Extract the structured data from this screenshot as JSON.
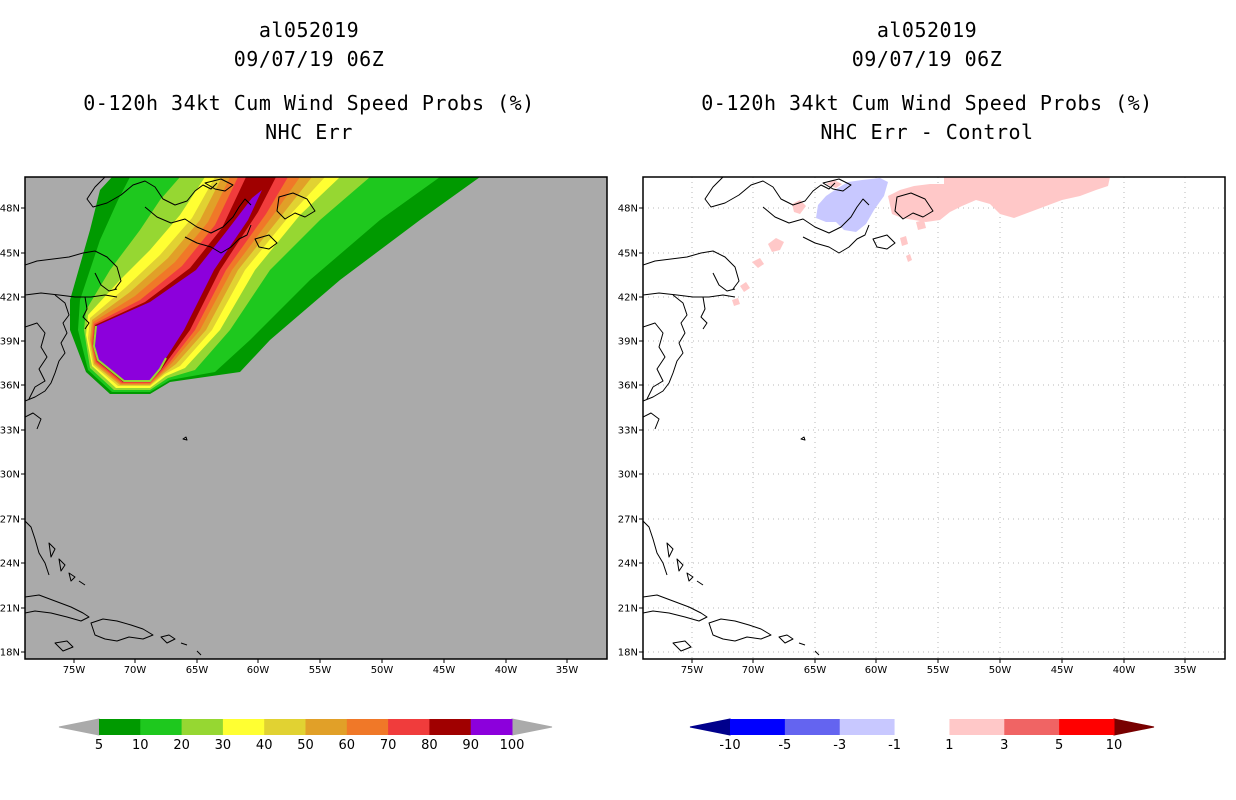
{
  "left_panel": {
    "storm_id": "al052019",
    "datetime": "09/07/19 06Z",
    "product": "0-120h 34kt Cum Wind Speed Probs (%)",
    "subtitle": "NHC Err",
    "background_color": "#aaaaaa",
    "colorbar": {
      "colors": [
        "#009a00",
        "#1ec81e",
        "#96d732",
        "#ffff32",
        "#e1d232",
        "#e1a028",
        "#f07828",
        "#f03c3c",
        "#a00000",
        "#8c00dc"
      ],
      "labels": [
        "5",
        "10",
        "20",
        "30",
        "40",
        "50",
        "60",
        "70",
        "80",
        "90",
        "100"
      ],
      "below_color": "#aaaaaa",
      "above_color": "#aaaaaa"
    }
  },
  "right_panel": {
    "storm_id": "al052019",
    "datetime": "09/07/19 06Z",
    "product": "0-120h 34kt Cum Wind Speed Probs (%)",
    "subtitle": "NHC Err - Control",
    "background_color": "#ffffff",
    "colorbar": {
      "colors": [
        "#0000ff",
        "#6464f0",
        "#c8c8ff",
        "#ffffff",
        "#ffc8c8",
        "#f06464",
        "#ff0000"
      ],
      "labels": [
        "-10",
        "-5",
        "-3",
        "-1",
        "1",
        "3",
        "5",
        "10"
      ],
      "below_color": "#00008c",
      "above_color": "#780000"
    }
  },
  "map": {
    "lon_labels": [
      "75W",
      "70W",
      "65W",
      "60W",
      "55W",
      "50W",
      "45W",
      "40W",
      "35W"
    ],
    "lat_labels": [
      "48N",
      "45N",
      "42N",
      "39N",
      "36N",
      "33N",
      "30N",
      "27N",
      "24N",
      "21N",
      "18N"
    ]
  }
}
